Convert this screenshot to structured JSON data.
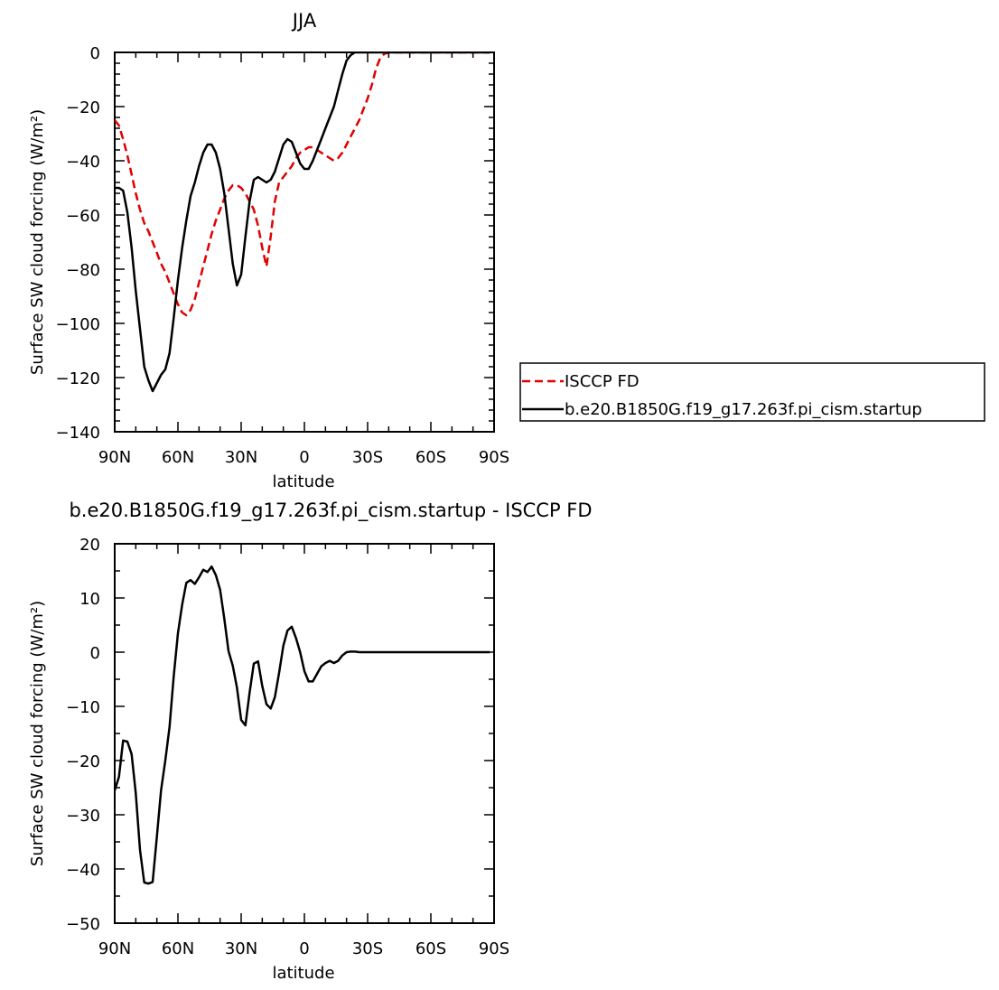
{
  "chart_data": [
    {
      "type": "line",
      "title": "JJA",
      "xlabel": "latitude",
      "ylabel": "Surface SW cloud forcing (W/m²)",
      "xlim": [
        90,
        -90
      ],
      "ylim": [
        -140,
        0
      ],
      "x_ticks": [
        {
          "value": 90,
          "label": "90N"
        },
        {
          "value": 60,
          "label": "60N"
        },
        {
          "value": 30,
          "label": "30N"
        },
        {
          "value": 0,
          "label": "0"
        },
        {
          "value": -30,
          "label": "30S"
        },
        {
          "value": -60,
          "label": "60S"
        },
        {
          "value": -90,
          "label": "90S"
        }
      ],
      "y_ticks": [
        0,
        -20,
        -40,
        -60,
        -80,
        -100,
        -120,
        -140
      ],
      "legend": {
        "placement": "right",
        "labels": [
          "ISCCP FD",
          "b.e20.B1850G.f19_g17.263f.pi_cism.startup"
        ]
      },
      "series": [
        {
          "name": "ISCCP FD",
          "color": "#e00000",
          "style": "dashed",
          "x": [
            90,
            88,
            86,
            84,
            82,
            80,
            78,
            76,
            74,
            72,
            70,
            68,
            66,
            64,
            62,
            60,
            58,
            56,
            54,
            52,
            50,
            48,
            46,
            44,
            42,
            40,
            38,
            36,
            34,
            32,
            30,
            28,
            26,
            24,
            22,
            20,
            18,
            16,
            14,
            12,
            10,
            8,
            6,
            4,
            2,
            0,
            -2,
            -4,
            -6,
            -8,
            -10,
            -12,
            -14,
            -16,
            -18,
            -20,
            -22,
            -24,
            -26,
            -28,
            -30,
            -32,
            -34,
            -36,
            -38,
            -40,
            -42,
            -44,
            -46,
            -48,
            -50,
            -52,
            -54,
            -56,
            -58,
            -60,
            -62,
            -64,
            -66,
            -68,
            -70,
            -72,
            -74,
            -76,
            -78,
            -80,
            -82,
            -84,
            -86,
            -88
          ],
          "y": [
            -25,
            -27,
            -32,
            -38,
            -45,
            -52,
            -58,
            -63,
            -66,
            -70,
            -74,
            -78,
            -81,
            -85,
            -89,
            -93,
            -96,
            -97,
            -95,
            -91,
            -85,
            -79,
            -73,
            -67,
            -62,
            -58,
            -54,
            -51,
            -49,
            -49,
            -50,
            -52,
            -55,
            -58,
            -64,
            -72,
            -79,
            -68,
            -55,
            -48,
            -46,
            -44,
            -42,
            -39,
            -37,
            -36,
            -35,
            -35,
            -36,
            -37,
            -38,
            -39,
            -40,
            -39,
            -37,
            -34,
            -31,
            -28,
            -25,
            -21,
            -17,
            -12,
            -6,
            -2,
            -0.5,
            0,
            0,
            0,
            0,
            0,
            0,
            0,
            0,
            0,
            0,
            0,
            0,
            0,
            0,
            0,
            0,
            0,
            0,
            0,
            0,
            0,
            0,
            0,
            0,
            0
          ]
        },
        {
          "name": "b.e20.B1850G.f19_g17.263f.pi_cism.startup",
          "color": "#000000",
          "style": "solid",
          "x": [
            90,
            88,
            86,
            84,
            82,
            80,
            78,
            76,
            74,
            72,
            70,
            68,
            66,
            64,
            62,
            60,
            58,
            56,
            54,
            52,
            50,
            48,
            46,
            44,
            42,
            40,
            38,
            36,
            34,
            32,
            30,
            28,
            26,
            24,
            22,
            20,
            18,
            16,
            14,
            12,
            10,
            8,
            6,
            4,
            2,
            0,
            -2,
            -4,
            -6,
            -8,
            -10,
            -12,
            -14,
            -16,
            -18,
            -20,
            -22,
            -24,
            -26,
            -28,
            -30,
            -32,
            -34,
            -36,
            -38,
            -40,
            -42,
            -44,
            -46,
            -48,
            -50,
            -52,
            -54,
            -56,
            -58,
            -60,
            -62,
            -64,
            -66,
            -68,
            -70,
            -72,
            -74,
            -76,
            -78,
            -80,
            -82,
            -84,
            -86,
            -88
          ],
          "y": [
            -50,
            -50,
            -51,
            -59,
            -72,
            -88,
            -102,
            -116,
            -121,
            -125,
            -122,
            -119,
            -117,
            -111,
            -98,
            -84,
            -72,
            -62,
            -53,
            -48,
            -42,
            -37,
            -34,
            -34,
            -37,
            -43,
            -52,
            -65,
            -78,
            -86,
            -82,
            -68,
            -55,
            -47,
            -46,
            -47,
            -48,
            -47,
            -44,
            -39,
            -34,
            -32,
            -33,
            -37,
            -41,
            -43,
            -43,
            -40,
            -36,
            -32,
            -28,
            -24,
            -20,
            -14,
            -8,
            -3,
            -1,
            0,
            0,
            0,
            0,
            0,
            0,
            0,
            0,
            0,
            0,
            0,
            0,
            0,
            0,
            0,
            0,
            0,
            0,
            0,
            0,
            0,
            0,
            0,
            0,
            0,
            0,
            0,
            0,
            0,
            0,
            0,
            0,
            0
          ]
        }
      ]
    },
    {
      "type": "line",
      "title": "b.e20.B1850G.f19_g17.263f.pi_cism.startup - ISCCP FD",
      "xlabel": "latitude",
      "ylabel": "Surface SW cloud forcing (W/m²)",
      "xlim": [
        90,
        -90
      ],
      "ylim": [
        -50,
        20
      ],
      "x_ticks": [
        {
          "value": 90,
          "label": "90N"
        },
        {
          "value": 60,
          "label": "60N"
        },
        {
          "value": 30,
          "label": "30N"
        },
        {
          "value": 0,
          "label": "0"
        },
        {
          "value": -30,
          "label": "30S"
        },
        {
          "value": -60,
          "label": "60S"
        },
        {
          "value": -90,
          "label": "90S"
        }
      ],
      "y_ticks": [
        20,
        10,
        0,
        -10,
        -20,
        -30,
        -40,
        -50
      ],
      "series": [
        {
          "color": "#000000",
          "style": "solid",
          "x": [
            90,
            88,
            86,
            84,
            82,
            80,
            78,
            76,
            74,
            72,
            70,
            68,
            66,
            64,
            62,
            60,
            58,
            56,
            54,
            52,
            50,
            48,
            46,
            44,
            42,
            40,
            38,
            36,
            34,
            32,
            30,
            28,
            26,
            24,
            22,
            20,
            18,
            16,
            14,
            12,
            10,
            8,
            6,
            4,
            2,
            0,
            -2,
            -4,
            -6,
            -8,
            -10,
            -12,
            -14,
            -16,
            -18,
            -20,
            -22,
            -24,
            -26,
            -28,
            -30,
            -32,
            -34,
            -36,
            -38,
            -40,
            -42,
            -44,
            -46,
            -48,
            -50,
            -52,
            -54,
            -56,
            -58,
            -60,
            -62,
            -64,
            -66,
            -68,
            -70,
            -72,
            -74,
            -76,
            -78,
            -80,
            -82,
            -84,
            -86,
            -88
          ],
          "y": [
            -25.5,
            -23,
            -16.3,
            -16.5,
            -18.8,
            -26,
            -36.5,
            -42.5,
            -42.7,
            -42.4,
            -34,
            -25.5,
            -20,
            -13.8,
            -4.5,
            3.5,
            8.8,
            12.8,
            13.3,
            12.6,
            13.8,
            15.2,
            14.8,
            15.8,
            14.2,
            11.5,
            6.2,
            0.2,
            -2.5,
            -6.5,
            -12.5,
            -13.5,
            -7.5,
            -2.1,
            -1.7,
            -6.2,
            -9.6,
            -10.4,
            -8.3,
            -3.8,
            1.2,
            4,
            4.7,
            2.6,
            0,
            -3.5,
            -5.4,
            -5.4,
            -4,
            -2.6,
            -2,
            -1.6,
            -2,
            -1.6,
            -0.6,
            0,
            0.1,
            0.1,
            0,
            0,
            0,
            0,
            0,
            0,
            0,
            0,
            0,
            0,
            0,
            0,
            0,
            0,
            0,
            0,
            0,
            0,
            0,
            0,
            0,
            0,
            0,
            0,
            0,
            0,
            0,
            0,
            0,
            0,
            0,
            0
          ]
        }
      ]
    }
  ]
}
